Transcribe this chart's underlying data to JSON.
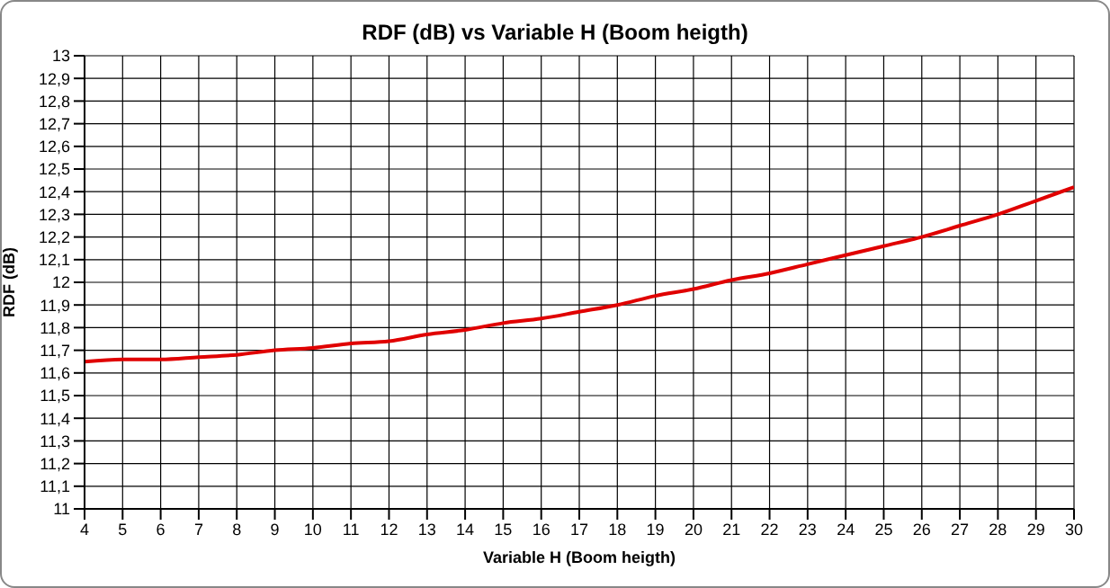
{
  "chart_data": {
    "type": "line",
    "title": "RDF (dB)  vs  Variable H  (Boom heigth)",
    "xlabel": "Variable H  (Boom heigth)",
    "ylabel": "RDF (dB)",
    "x": [
      4,
      5,
      6,
      7,
      8,
      9,
      10,
      11,
      12,
      13,
      14,
      15,
      16,
      17,
      18,
      19,
      20,
      21,
      22,
      23,
      24,
      25,
      26,
      27,
      28,
      29,
      30
    ],
    "series": [
      {
        "color": "#e00000",
        "values": [
          11.65,
          11.66,
          11.66,
          11.67,
          11.68,
          11.7,
          11.71,
          11.73,
          11.74,
          11.77,
          11.79,
          11.82,
          11.84,
          11.87,
          11.9,
          11.94,
          11.97,
          12.01,
          12.04,
          12.08,
          12.12,
          12.16,
          12.2,
          12.25,
          12.3,
          12.36,
          12.42
        ]
      }
    ],
    "xlim": [
      4,
      30
    ],
    "xticks": [
      4,
      5,
      6,
      7,
      8,
      9,
      10,
      11,
      12,
      13,
      14,
      15,
      16,
      17,
      18,
      19,
      20,
      21,
      22,
      23,
      24,
      25,
      26,
      27,
      28,
      29,
      30
    ],
    "ylim": [
      11,
      13
    ],
    "yticks": [
      11,
      {
        "value": 11.1,
        "label": "11,1"
      },
      {
        "value": 11.2,
        "label": "11,2"
      },
      {
        "value": 11.3,
        "label": "11,3"
      },
      {
        "value": 11.4,
        "label": "11,4"
      },
      {
        "value": 11.5,
        "label": "11,5"
      },
      {
        "value": 11.6,
        "label": "11,6"
      },
      {
        "value": 11.7,
        "label": "11,7"
      },
      {
        "value": 11.8,
        "label": "11,8"
      },
      {
        "value": 11.9,
        "label": "11,9"
      },
      12,
      {
        "value": 12.1,
        "label": "12,1"
      },
      {
        "value": 12.2,
        "label": "12,2"
      },
      {
        "value": 12.3,
        "label": "12,3"
      },
      {
        "value": 12.4,
        "label": "12,4"
      },
      {
        "value": 12.5,
        "label": "12,5"
      },
      {
        "value": 12.6,
        "label": "12,6"
      },
      {
        "value": 12.7,
        "label": "12,7"
      },
      {
        "value": 12.8,
        "label": "12,8"
      },
      {
        "value": 12.9,
        "label": "12,9"
      },
      13
    ],
    "grid": true,
    "legend": false,
    "marker": "none",
    "line_style": "solid"
  }
}
